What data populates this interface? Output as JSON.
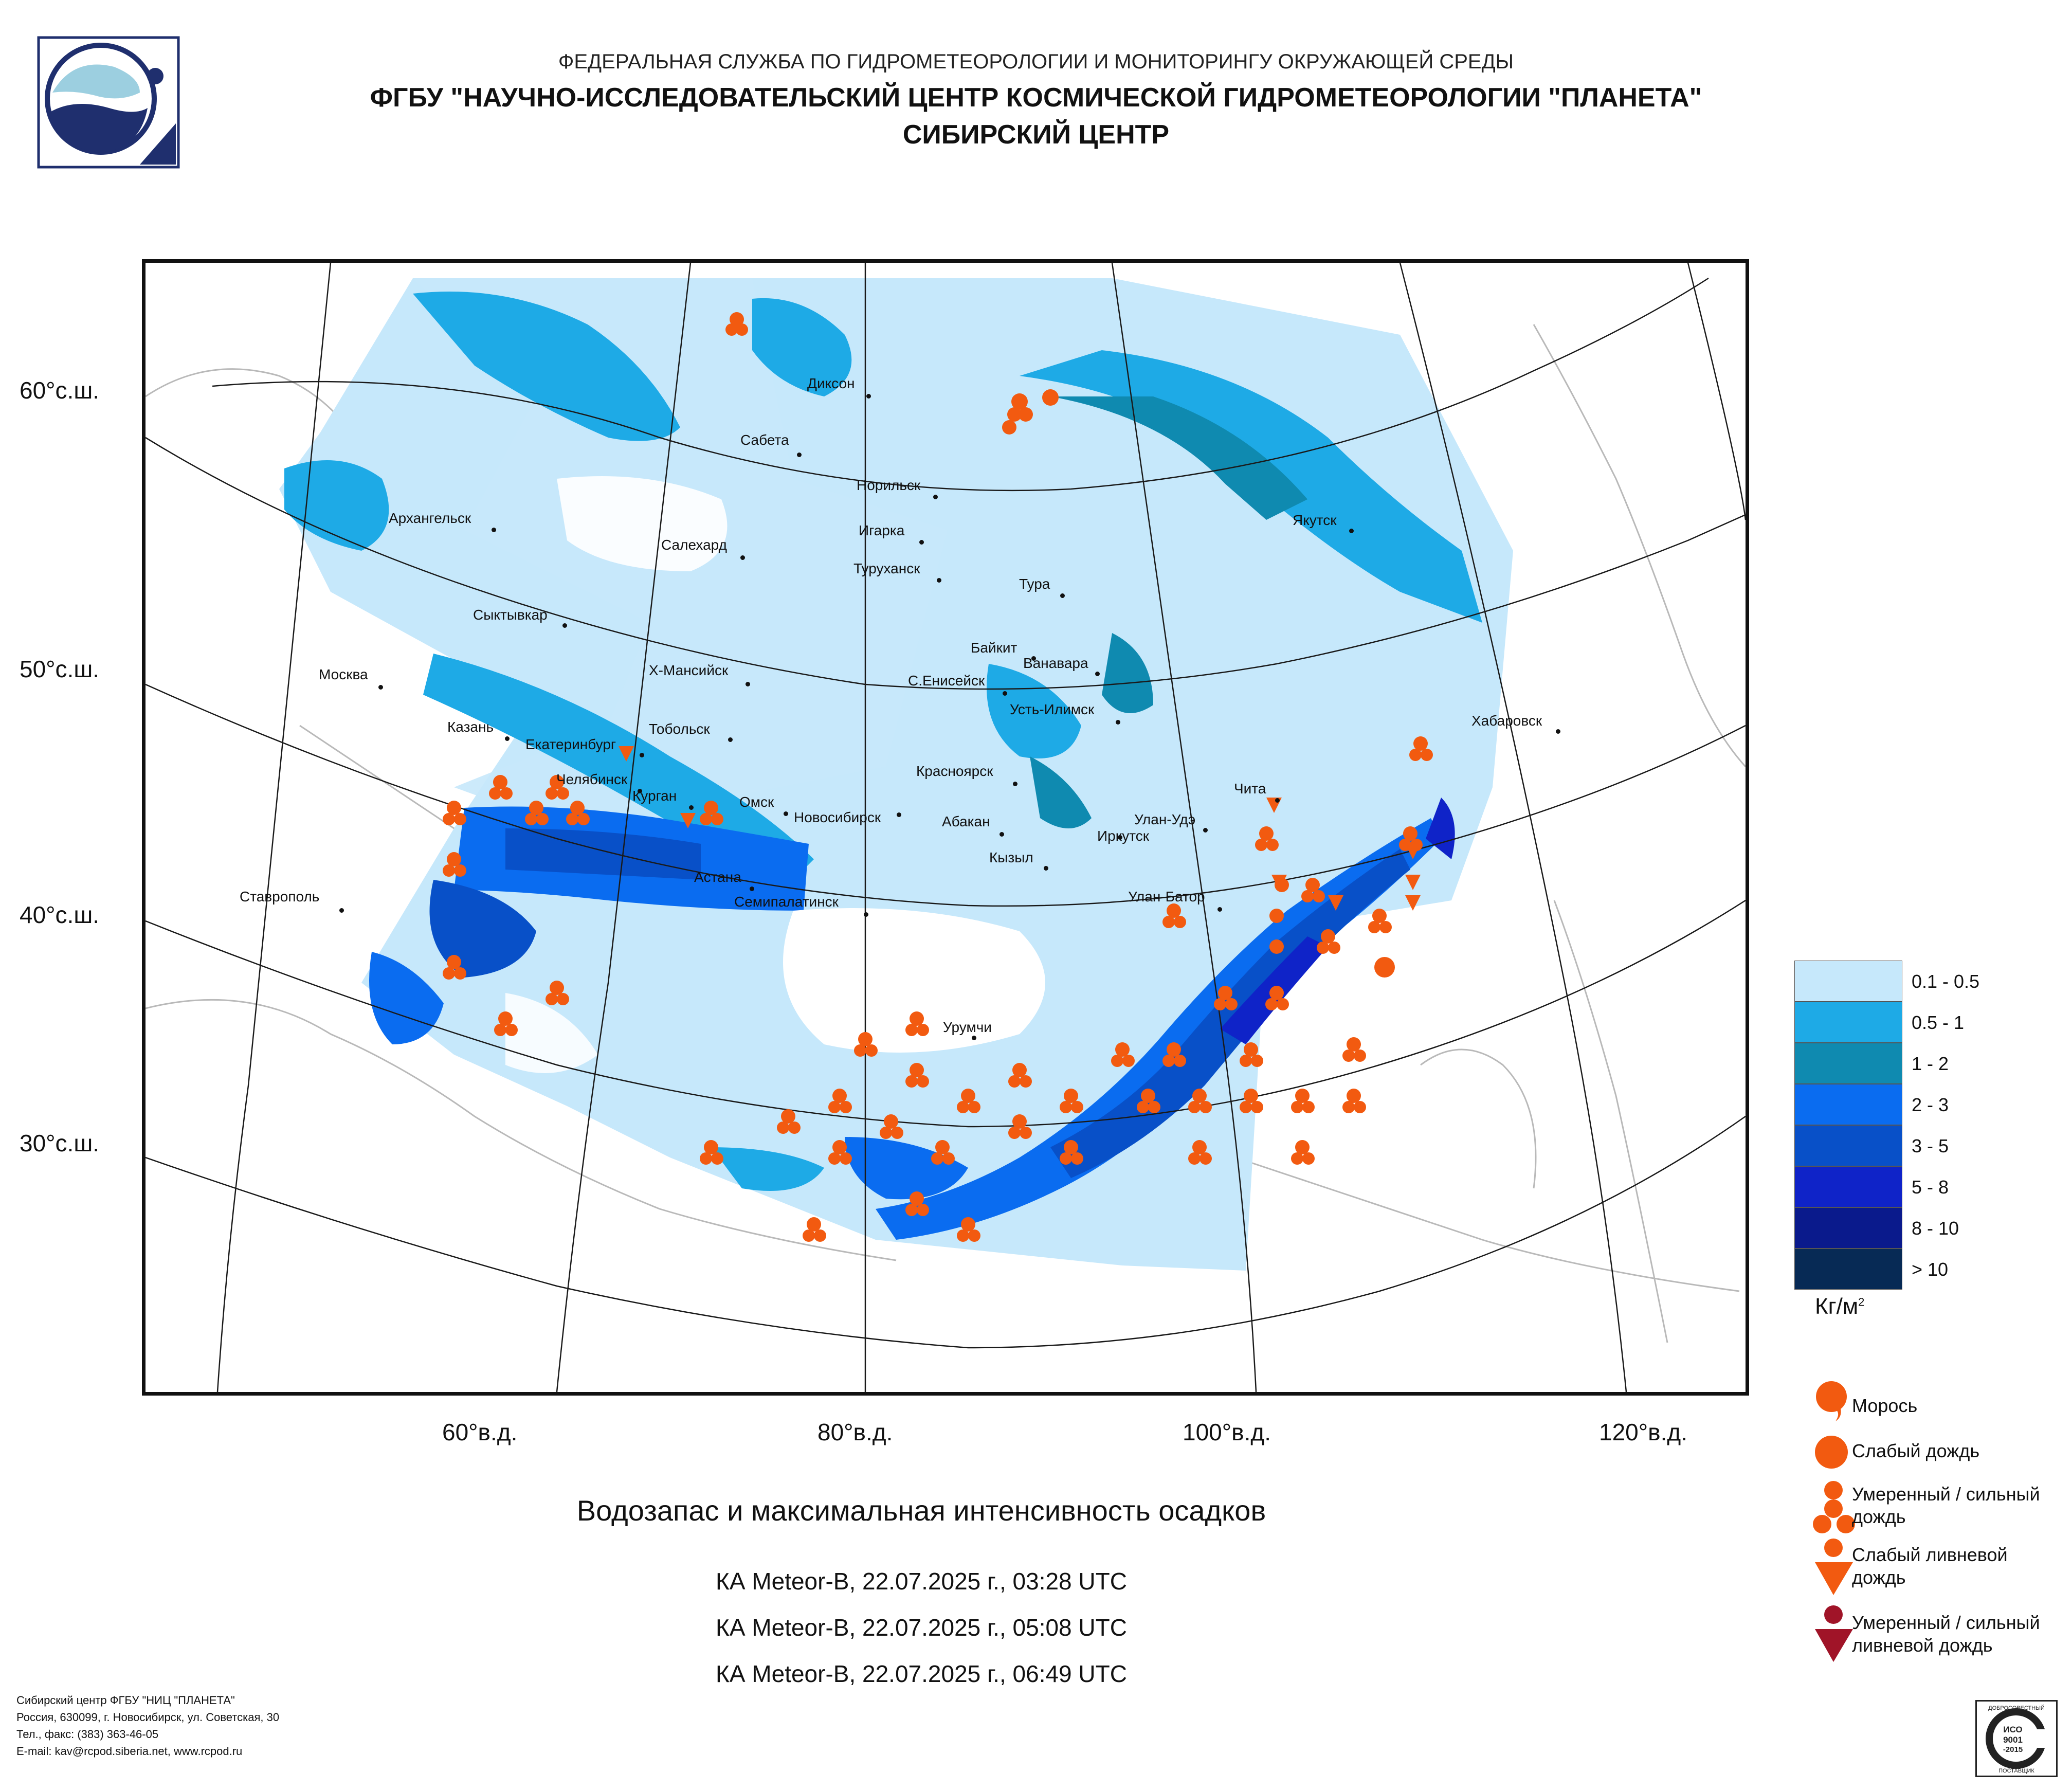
{
  "header": {
    "line1": "ФЕДЕРАЛЬНАЯ СЛУЖБА ПО ГИДРОМЕТЕОРОЛОГИИ И МОНИТОРИНГУ ОКРУЖАЮЩЕЙ СРЕДЫ",
    "line2": "ФГБУ \"НАУЧНО-ИССЛЕДОВАТЕЛЬСКИЙ ЦЕНТР КОСМИЧЕСКОЙ ГИДРОМЕТЕОРОЛОГИИ \"ПЛАНЕТА\"",
    "line3": "СИБИРСКИЙ ЦЕНТР"
  },
  "axes": {
    "latitudes": [
      "60°с.ш.",
      "50°с.ш.",
      "40°с.ш.",
      "30°с.ш."
    ],
    "longitudes": [
      "60°в.д.",
      "80°в.д.",
      "100°в.д.",
      "120°в.д."
    ]
  },
  "cities": [
    {
      "name": "Диксон"
    },
    {
      "name": "Сабета"
    },
    {
      "name": "Норильск"
    },
    {
      "name": "Якутск"
    },
    {
      "name": "Архангельск"
    },
    {
      "name": "Салехард"
    },
    {
      "name": "Игарка"
    },
    {
      "name": "Туруханск"
    },
    {
      "name": "Тура"
    },
    {
      "name": "Сыктывкар"
    },
    {
      "name": "Байкит"
    },
    {
      "name": "Ванавара"
    },
    {
      "name": "Москва"
    },
    {
      "name": "Х-Мансийск"
    },
    {
      "name": "С.Енисейск"
    },
    {
      "name": "Хабаровск"
    },
    {
      "name": "Усть-Илимск"
    },
    {
      "name": "Казань"
    },
    {
      "name": "Екатеринбург"
    },
    {
      "name": "Тобольск"
    },
    {
      "name": "Челябинск"
    },
    {
      "name": "Красноярск"
    },
    {
      "name": "Чита"
    },
    {
      "name": "Курган"
    },
    {
      "name": "Омск"
    },
    {
      "name": "Новосибирск"
    },
    {
      "name": "Абакан"
    },
    {
      "name": "Улан-Удэ"
    },
    {
      "name": "Иркутск"
    },
    {
      "name": "Кызыл"
    },
    {
      "name": "Астана"
    },
    {
      "name": "Ставрополь"
    },
    {
      "name": "Семипалатинск"
    },
    {
      "name": "Улан-Батор"
    },
    {
      "name": "Урумчи"
    }
  ],
  "legend": {
    "scale": [
      {
        "label": "0.1 - 0.5",
        "color": "#c6e8fb"
      },
      {
        "label": "0.5 - 1",
        "color": "#1eaae6"
      },
      {
        "label": "1 - 2",
        "color": "#0f8ab0"
      },
      {
        "label": "2 - 3",
        "color": "#0a6cf0"
      },
      {
        "label": "3 - 5",
        "color": "#0850c8"
      },
      {
        "label": "5 - 8",
        "color": "#0f23c8"
      },
      {
        "label": "8 - 10",
        "color": "#0a1a8c"
      },
      {
        "label": "> 10",
        "color": "#072a55"
      }
    ],
    "unit": "Кг/м",
    "unit_sup": "2",
    "symbols": [
      {
        "label_lines": [
          "Морось"
        ],
        "color": "#f25a10"
      },
      {
        "label_lines": [
          "Слабый дождь"
        ],
        "color": "#f25a10"
      },
      {
        "label_lines": [
          "Умеренный / сильный",
          "дождь"
        ],
        "color": "#f25a10"
      },
      {
        "label_lines": [
          "Слабый ливневой",
          "дождь"
        ],
        "color": "#f25a10"
      },
      {
        "label_lines": [
          "Умеренный / сильный",
          "ливневой дождь"
        ],
        "color": "#a01428"
      }
    ]
  },
  "title": "Водозапас и максимальная интенсивность осадков",
  "passes": [
    "КА Meteor-В, 22.07.2025 г., 03:28 UTC",
    "КА Meteor-В, 22.07.2025 г., 05:08 UTC",
    "КА Meteor-В, 22.07.2025 г., 06:49 UTC"
  ],
  "footer": [
    "Сибирский центр ФГБУ \"НИЦ \"ПЛАНЕТА\"",
    "Россия, 630099, г. Новосибирск, ул. Советская, 30",
    "Тел., факс: (383) 363-46-05",
    "E-mail: kav@rcpod.siberia.net, www.rcpod.ru"
  ],
  "iso_badge": {
    "top": "ДОБРОСОВЕСТНЫЙ",
    "l1": "ИСО",
    "l2": "9001",
    "l3": "-2015",
    "bottom": "ПОСТАВЩИК"
  }
}
